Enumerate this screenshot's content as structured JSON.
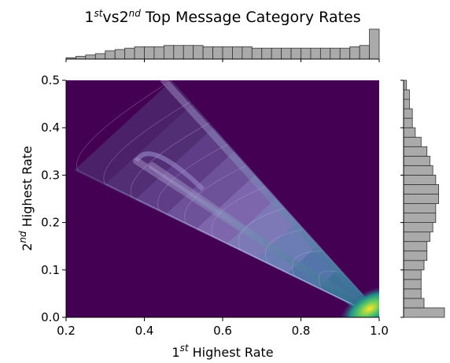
{
  "chart_data": {
    "type": "heatmap",
    "title": {
      "pre": "1",
      "sup1": "st",
      "mid": "vs2",
      "sup2": "nd",
      "post": " Top Message Category Rates"
    },
    "xlabel": {
      "pre": "1",
      "sup": "st",
      "post": " Highest Rate"
    },
    "ylabel": {
      "pre": "2",
      "sup": "nd",
      "post": " Highest Rate"
    },
    "xlim": [
      0.2,
      1.0
    ],
    "ylim": [
      0.0,
      0.5
    ],
    "xticks": [
      0.2,
      0.4,
      0.6,
      0.8,
      1.0
    ],
    "xtick_labels": [
      "0.2",
      "0.4",
      "0.6",
      "0.8",
      "1.0"
    ],
    "yticks": [
      0.0,
      0.1,
      0.2,
      0.3,
      0.4,
      0.5
    ],
    "ytick_labels": [
      "0.0",
      "0.1",
      "0.2",
      "0.3",
      "0.4",
      "0.5"
    ],
    "colormap": "viridis",
    "density_shape": {
      "description": "triangular wedge of density bounded by y <= x and y <= 1 - x, bright peak near (1.0, 0.0)",
      "peak": [
        0.99,
        0.01
      ],
      "ridges": [
        {
          "from": [
            0.45,
            0.5
          ],
          "to": [
            1.0,
            0.0
          ]
        },
        {
          "from": [
            0.38,
            0.33
          ],
          "to": [
            1.0,
            0.0
          ]
        },
        {
          "from": [
            0.42,
            0.32
          ],
          "to": [
            0.95,
            0.02
          ]
        }
      ]
    },
    "marginal_x": {
      "bin_edges_start": 0.2,
      "bin_width": 0.025,
      "counts": [
        1,
        2,
        3,
        4,
        6,
        7,
        8,
        9,
        9,
        9,
        10,
        10,
        10,
        10,
        9,
        9,
        9,
        9,
        9,
        8,
        8,
        8,
        8,
        8,
        8,
        8,
        8,
        8,
        8,
        9,
        10,
        22
      ]
    },
    "marginal_y": {
      "bin_edges_start": 0.0,
      "bin_width": 0.02,
      "counts": [
        14,
        7,
        6,
        6,
        6,
        7,
        8,
        8,
        9,
        10,
        11,
        11,
        12,
        12,
        11,
        10,
        9,
        8,
        6,
        4,
        3,
        3,
        2,
        2,
        1
      ]
    },
    "colors": {
      "background": "#440154",
      "bar_fill": "#aaaaaa",
      "bar_edge": "#333333",
      "peak": "#fde725"
    }
  }
}
